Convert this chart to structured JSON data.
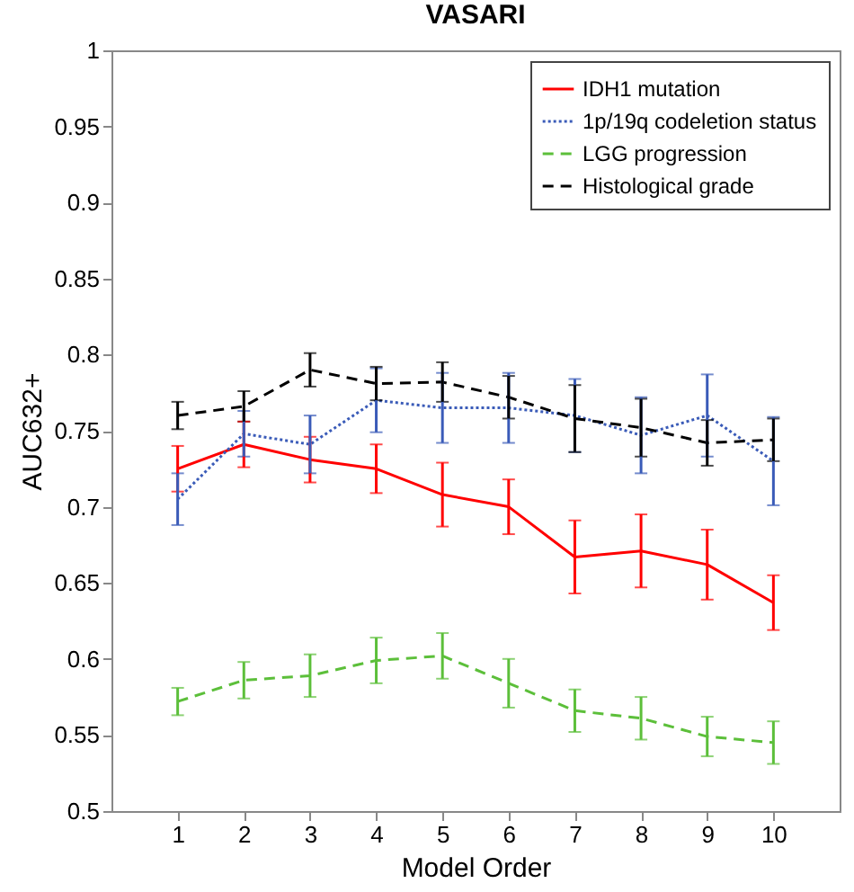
{
  "chart_data": {
    "type": "line",
    "title": "VASARI",
    "xlabel": "Model Order",
    "ylabel": "AUC632+",
    "x": [
      1,
      2,
      3,
      4,
      5,
      6,
      7,
      8,
      9,
      10
    ],
    "series": [
      {
        "name": "IDH1 mutation",
        "color": "#ff0000",
        "line_style": "solid",
        "values": [
          0.725,
          0.741,
          0.731,
          0.725,
          0.708,
          0.7,
          0.667,
          0.671,
          0.662,
          0.637
        ],
        "errors": [
          0.015,
          0.015,
          0.015,
          0.016,
          0.021,
          0.018,
          0.024,
          0.024,
          0.023,
          0.018
        ]
      },
      {
        "name": "1p/19q codeletion status",
        "color": "#3a5bb8",
        "line_style": "dotted",
        "values": [
          0.705,
          0.748,
          0.741,
          0.77,
          0.765,
          0.765,
          0.76,
          0.747,
          0.76,
          0.73
        ],
        "errors": [
          0.017,
          0.015,
          0.019,
          0.021,
          0.023,
          0.023,
          0.024,
          0.025,
          0.027,
          0.029
        ]
      },
      {
        "name": "LGG progression",
        "color": "#5cbf3a",
        "line_style": "dashed",
        "values": [
          0.572,
          0.586,
          0.589,
          0.599,
          0.602,
          0.584,
          0.566,
          0.561,
          0.549,
          0.545
        ],
        "errors": [
          0.009,
          0.012,
          0.014,
          0.015,
          0.015,
          0.016,
          0.014,
          0.014,
          0.013,
          0.014
        ]
      },
      {
        "name": "Histological grade",
        "color": "#000000",
        "line_style": "dashed",
        "values": [
          0.76,
          0.766,
          0.79,
          0.781,
          0.782,
          0.772,
          0.758,
          0.752,
          0.742,
          0.744
        ],
        "errors": [
          0.009,
          0.01,
          0.011,
          0.011,
          0.013,
          0.014,
          0.022,
          0.019,
          0.015,
          0.014
        ]
      }
    ],
    "xlim": [
      0,
      11
    ],
    "xticks": [
      1,
      2,
      3,
      4,
      5,
      6,
      7,
      8,
      9,
      10
    ],
    "ylim": [
      0.5,
      1
    ],
    "yticks": [
      0.5,
      0.55,
      0.6,
      0.65,
      0.7,
      0.75,
      0.8,
      0.85,
      0.9,
      0.95,
      1
    ],
    "grid": false,
    "legend": "top right",
    "marker": "none"
  }
}
